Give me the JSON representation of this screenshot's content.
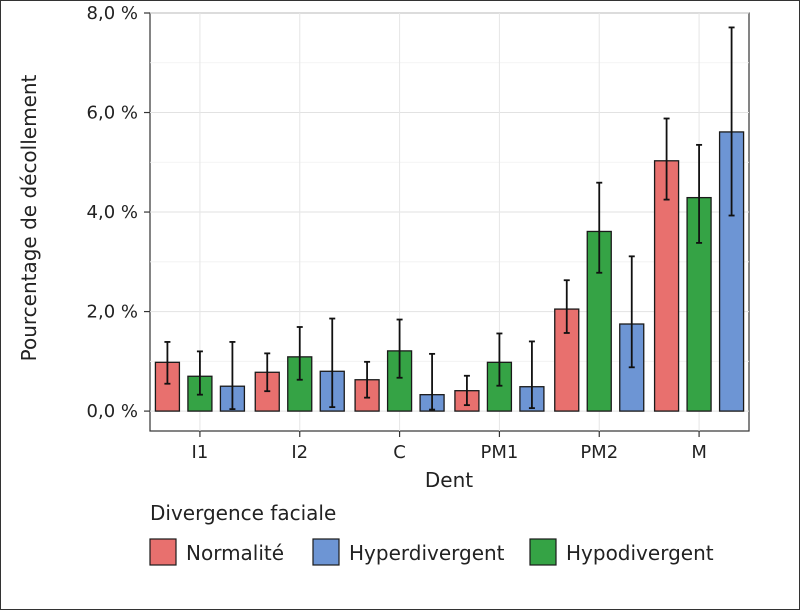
{
  "chart_data": {
    "type": "bar",
    "xlabel": "Dent",
    "ylabel": "Pourcentage de décollement",
    "ylim": [
      -0.4,
      8.0
    ],
    "yticks": [
      {
        "value": 0,
        "label": "0,0 %"
      },
      {
        "value": 2,
        "label": "2,0 %"
      },
      {
        "value": 4,
        "label": "4,0 %"
      },
      {
        "value": 6,
        "label": "6,0 %"
      },
      {
        "value": 8,
        "label": "8,0 %"
      }
    ],
    "categories": [
      "I1",
      "I2",
      "C",
      "PM1",
      "PM2",
      "M"
    ],
    "series": [
      {
        "name": "Normalité",
        "color": "#e8706e",
        "values": [
          0.98,
          0.78,
          0.63,
          0.41,
          2.05,
          5.03
        ],
        "err_low": [
          0.55,
          0.4,
          0.27,
          0.12,
          1.57,
          4.25
        ],
        "err_high": [
          1.39,
          1.16,
          0.99,
          0.71,
          2.63,
          5.88
        ]
      },
      {
        "name": "Hypodivergent",
        "color": "#35a345",
        "values": [
          0.7,
          1.09,
          1.21,
          0.98,
          3.61,
          4.29
        ],
        "err_low": [
          0.33,
          0.63,
          0.67,
          0.51,
          2.78,
          3.38
        ],
        "err_high": [
          1.2,
          1.69,
          1.84,
          1.56,
          4.59,
          5.35
        ]
      },
      {
        "name": "Hyperdivergent",
        "color": "#6d95d4",
        "values": [
          0.5,
          0.8,
          0.33,
          0.49,
          1.75,
          5.61
        ],
        "err_low": [
          0.04,
          0.08,
          0.03,
          0.06,
          0.88,
          3.93
        ],
        "err_high": [
          1.39,
          1.86,
          1.15,
          1.4,
          3.11,
          7.71
        ]
      }
    ],
    "legend": {
      "title": "Divergence faciale",
      "position": "bottom",
      "entries": [
        {
          "label": "Normalité",
          "color": "#e8706e"
        },
        {
          "label": "Hyperdivergent",
          "color": "#6d95d4"
        },
        {
          "label": "Hypodivergent",
          "color": "#35a345"
        }
      ]
    },
    "grid": true
  }
}
